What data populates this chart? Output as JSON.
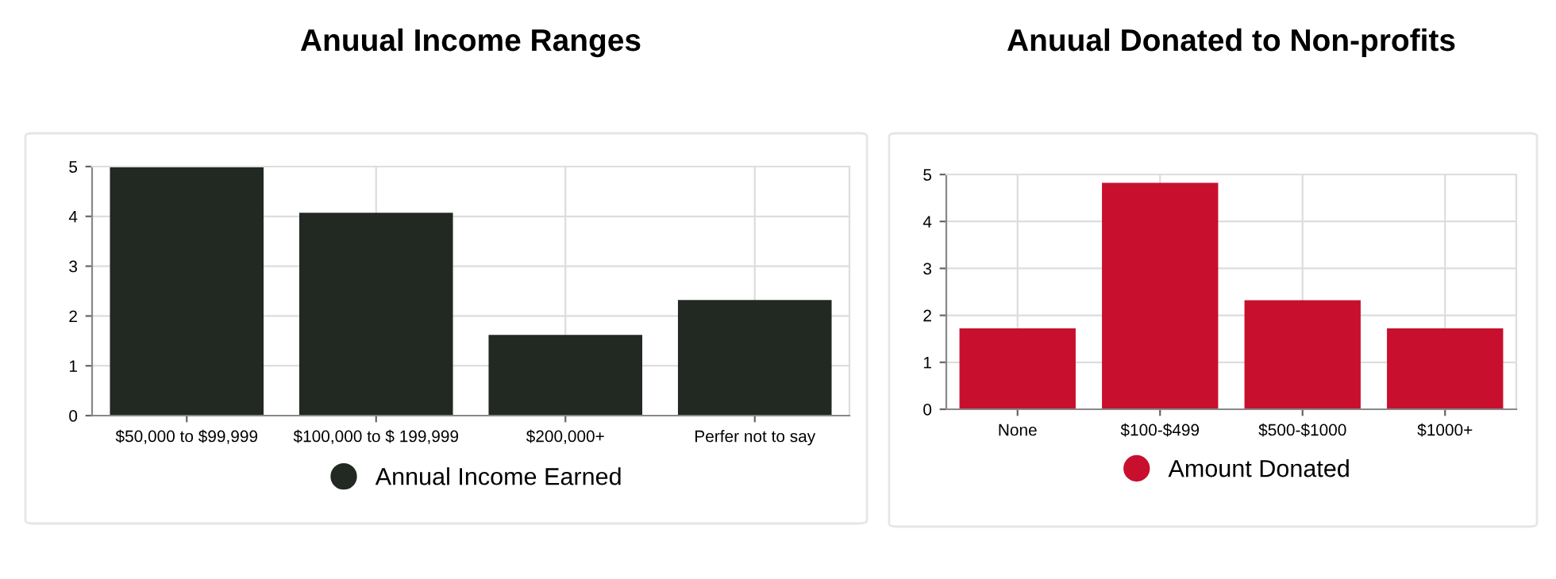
{
  "chart_data": [
    {
      "type": "bar",
      "title": "Anuual Income Ranges",
      "categories": [
        "$50,000 to $99,999",
        "$100,000 to $ 199,999",
        "$200,000+",
        "Perfer not to say"
      ],
      "series": [
        {
          "name": "Annual Income Earned",
          "color": "#222822",
          "values": [
            5,
            4.05,
            1.6,
            2.3
          ]
        }
      ],
      "ylim": [
        0,
        5
      ],
      "yticks": [
        0,
        1,
        2,
        3,
        4,
        5
      ],
      "grid": true,
      "legend": "bottom"
    },
    {
      "type": "bar",
      "title": "Anuual Donated to Non-profits",
      "categories": [
        "None",
        "$100-$499",
        "$500-$1000",
        "$1000+"
      ],
      "series": [
        {
          "name": "Amount Donated",
          "color": "#c8102e",
          "values": [
            1.7,
            4.8,
            2.3,
            1.7
          ]
        }
      ],
      "ylim": [
        0,
        5
      ],
      "yticks": [
        0,
        1,
        2,
        3,
        4,
        5
      ],
      "grid": true,
      "legend": "bottom"
    }
  ]
}
